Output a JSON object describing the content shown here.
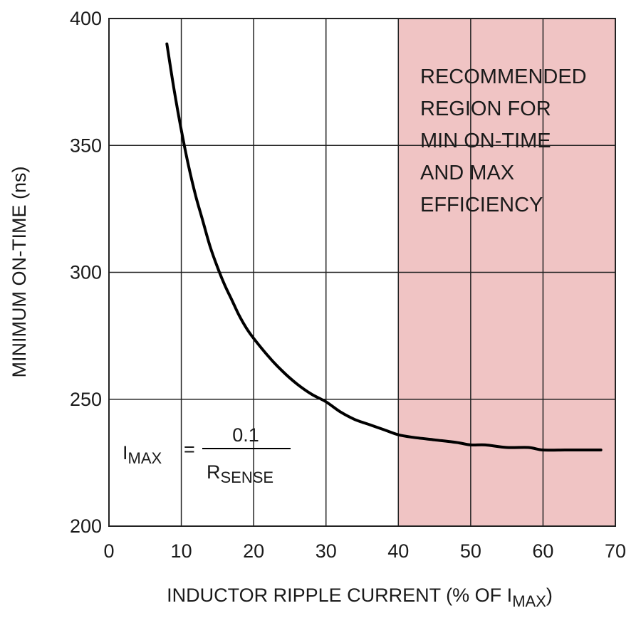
{
  "chart_data": {
    "type": "line",
    "title": "",
    "xlabel": {
      "main": "INDUCTOR RIPPLE CURRENT (% OF I",
      "sub": "MAX",
      "end": ")"
    },
    "ylabel": "MINIMUM ON-TIME (ns)",
    "xlim": [
      0,
      70
    ],
    "ylim": [
      200,
      400
    ],
    "x_ticks": [
      0,
      10,
      20,
      30,
      40,
      50,
      60,
      70
    ],
    "y_ticks": [
      200,
      250,
      300,
      350,
      400
    ],
    "grid": true,
    "colors": {
      "line": "#000000",
      "region": "#f0c4c4",
      "grid": "#222222"
    },
    "series": [
      {
        "x": [
          8,
          9,
          10,
          11,
          12,
          13,
          14,
          15,
          16,
          17,
          18,
          19,
          20,
          22,
          24,
          26,
          28,
          30,
          32,
          34,
          36,
          38,
          40,
          42,
          45,
          48,
          50,
          52,
          55,
          58,
          60,
          63,
          65,
          68
        ],
        "values": [
          390,
          372,
          356,
          342,
          330,
          320,
          310,
          302,
          295,
          289,
          283,
          278,
          274,
          267,
          261,
          256,
          252,
          249,
          245,
          242,
          240,
          238,
          236,
          235,
          234,
          233,
          232,
          232,
          231,
          231,
          230,
          230,
          230,
          230
        ]
      }
    ],
    "region": {
      "x_range": [
        40,
        70
      ],
      "lines": [
        "RECOMMENDED",
        "REGION FOR",
        "MIN ON-TIME",
        "AND MAX",
        "EFFICIENCY"
      ]
    },
    "annotation": {
      "lhs": "I",
      "lhs_sub": "MAX",
      "equals": "=",
      "numerator": "0.1",
      "denominator": "R",
      "denominator_sub": "SENSE"
    }
  }
}
